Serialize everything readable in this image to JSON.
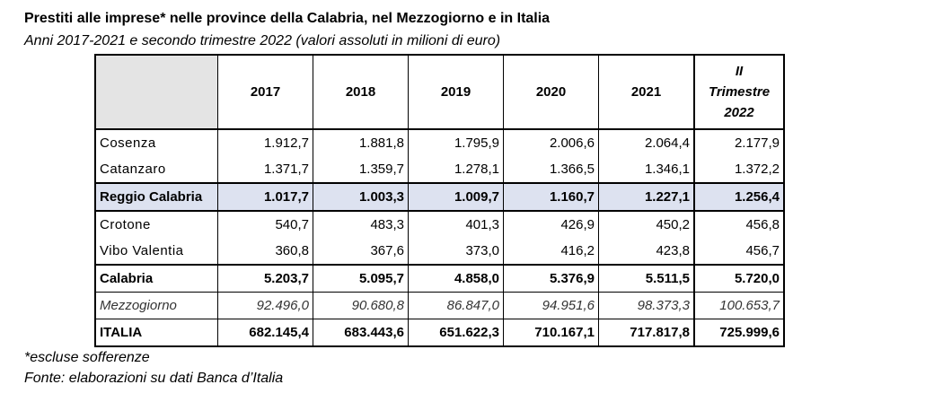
{
  "title": "Prestiti alle imprese* nelle province della Calabria, nel Mezzogiorno e in Italia",
  "subtitle": "Anni 2017-2021 e secondo trimestre 2022 (valori assoluti in milioni di euro)",
  "table": {
    "headers": [
      "",
      "2017",
      "2018",
      "2019",
      "2020",
      "2021"
    ],
    "last_header": [
      "II",
      "Trimestre",
      "2022"
    ],
    "rows": [
      {
        "label": "Cosenza",
        "values": [
          "1.912,7",
          "1.881,8",
          "1.795,9",
          "2.006,6",
          "2.064,4",
          "2.177,9"
        ]
      },
      {
        "label": "Catanzaro",
        "values": [
          "1.371,7",
          "1.359,7",
          "1.278,1",
          "1.366,5",
          "1.346,1",
          "1.372,2"
        ]
      },
      {
        "label": "Reggio Calabria",
        "values": [
          "1.017,7",
          "1.003,3",
          "1.009,7",
          "1.160,7",
          "1.227,1",
          "1.256,4"
        ]
      },
      {
        "label": "Crotone",
        "values": [
          "540,7",
          "483,3",
          "401,3",
          "426,9",
          "450,2",
          "456,8"
        ]
      },
      {
        "label": "Vibo Valentia",
        "values": [
          "360,8",
          "367,6",
          "373,0",
          "416,2",
          "423,8",
          "456,7"
        ]
      },
      {
        "label": "Calabria",
        "values": [
          "5.203,7",
          "5.095,7",
          "4.858,0",
          "5.376,9",
          "5.511,5",
          "5.720,0"
        ]
      },
      {
        "label": "Mezzogiorno",
        "values": [
          "92.496,0",
          "90.680,8",
          "86.847,0",
          "94.951,6",
          "98.373,3",
          "100.653,7"
        ]
      },
      {
        "label": "ITALIA",
        "values": [
          "682.145,4",
          "683.443,6",
          "651.622,3",
          "710.167,1",
          "717.817,8",
          "725.999,6"
        ]
      }
    ],
    "highlight_color": "#dde2f0"
  },
  "footnote": "*escluse sofferenze",
  "source": "Fonte: elaborazioni su dati Banca d’Italia"
}
